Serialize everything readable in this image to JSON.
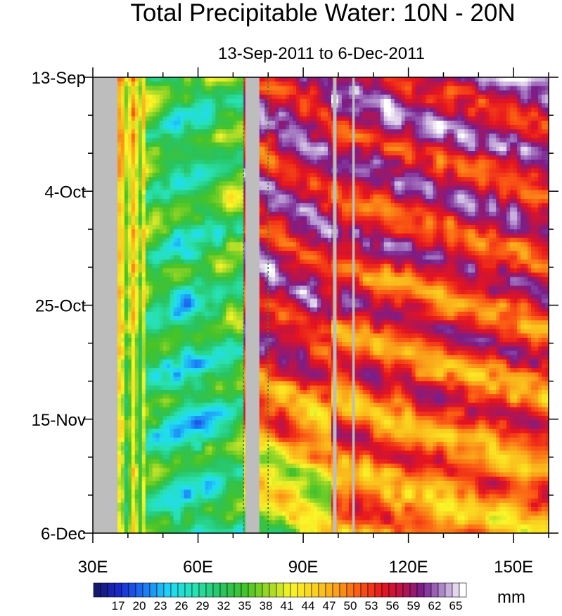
{
  "chart_data": {
    "type": "heatmap",
    "title": "Total Precipitable Water: 10N - 20N",
    "subtitle": "13-Sep-2011 to 6-Dec-2011",
    "x_axis": {
      "range": [
        30,
        160
      ],
      "ticks": [
        {
          "value": 30,
          "label": "30E"
        },
        {
          "value": 60,
          "label": "60E"
        },
        {
          "value": 90,
          "label": "90E"
        },
        {
          "value": 120,
          "label": "120E"
        },
        {
          "value": 150,
          "label": "150E"
        }
      ],
      "minor_step": 10
    },
    "y_axis": {
      "start_label": "13-Sep",
      "end_label": "6-Dec",
      "total_days": 84,
      "ticks": [
        {
          "day": 0,
          "label": "13-Sep"
        },
        {
          "day": 21,
          "label": "4-Oct"
        },
        {
          "day": 42,
          "label": "25-Oct"
        },
        {
          "day": 63,
          "label": "15-Nov"
        },
        {
          "day": 84,
          "label": "6-Dec"
        }
      ],
      "minor_step_days": 7
    },
    "colorbar": {
      "unit": "mm",
      "min": 14,
      "max": 66,
      "step": 1,
      "labels": [
        17,
        20,
        23,
        26,
        29,
        32,
        35,
        38,
        41,
        44,
        47,
        50,
        53,
        56,
        59,
        62,
        65
      ]
    },
    "missing_color": "#bdbdbd",
    "missing_lon_bands": [
      [
        30,
        37
      ],
      [
        73.5,
        77.5
      ],
      [
        98.5,
        99.5
      ],
      [
        104,
        104.7
      ]
    ],
    "land_contour_lons": [
      73,
      80
    ],
    "land_contour_color": "#2e8b2e",
    "value_summary": {
      "arabian_sea_60_72E": "29-38",
      "bay_of_bengal_80_98E_sep_oct": "55-62",
      "bay_of_bengal_80_98E_late_nov": "30-38",
      "western_pacific_110_160E_sep": "56-62",
      "western_pacific_130_160E_nov": "44-50"
    }
  }
}
